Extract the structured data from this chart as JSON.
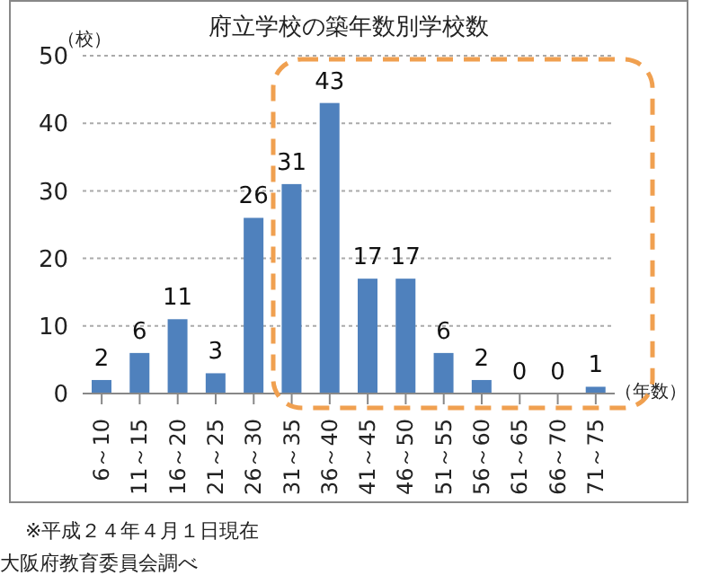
{
  "chart_data": {
    "type": "bar",
    "title": "府立学校の築年数別学校数",
    "ylabel": "（校）",
    "xlabel": "（年数）",
    "categories": [
      "6～10",
      "11～15",
      "16～20",
      "21～25",
      "26～30",
      "31～35",
      "36～40",
      "41～45",
      "46～50",
      "51～55",
      "56～60",
      "61～65",
      "66～70",
      "71～75"
    ],
    "values": [
      2,
      6,
      11,
      3,
      26,
      31,
      43,
      17,
      17,
      6,
      2,
      0,
      0,
      1
    ],
    "color": "#4f81bd",
    "ylim": [
      0,
      50
    ],
    "yticks": [
      0,
      10,
      20,
      30,
      40,
      50
    ],
    "grid": "y",
    "data_labels": true,
    "annotations": [
      "※平成２４年４月１日現在",
      "大阪府教育委員会調べ"
    ]
  }
}
